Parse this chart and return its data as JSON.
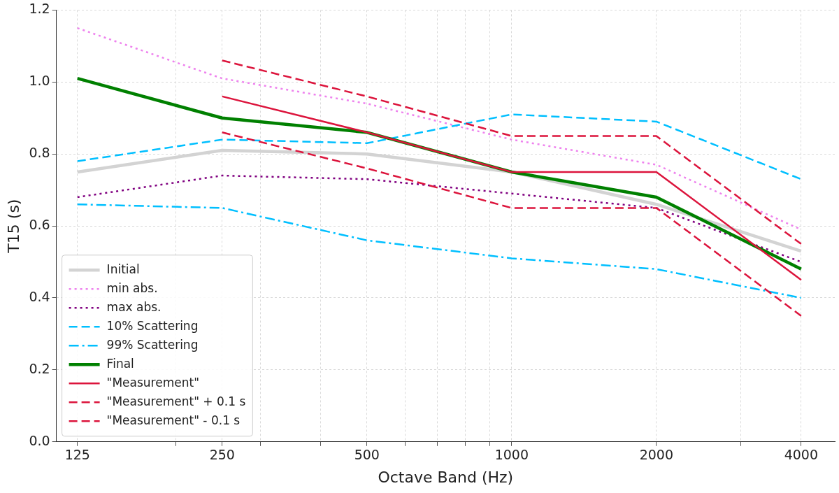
{
  "chart_data": {
    "type": "line",
    "xlabel": "Octave Band (Hz)",
    "ylabel": "T15 (s)",
    "x": [
      125,
      250,
      500,
      1000,
      2000,
      4000
    ],
    "xlim": [
      113,
      4700
    ],
    "ylim": [
      0,
      1.2
    ],
    "log": "x",
    "xticks": [
      125,
      {
        "value": 200,
        "label": null
      },
      250,
      {
        "value": 300,
        "label": null
      },
      {
        "value": 400,
        "label": null
      },
      500,
      {
        "value": 600,
        "label": null
      },
      {
        "value": 700,
        "label": null
      },
      {
        "value": 800,
        "label": null
      },
      {
        "value": 900,
        "label": null
      },
      1000,
      2000,
      {
        "value": 3000,
        "label": null
      },
      4000
    ],
    "yticks": [
      {
        "value": 0,
        "label": "0.0"
      },
      {
        "value": 0.2,
        "label": "0.2"
      },
      {
        "value": 0.4,
        "label": "0.4"
      },
      {
        "value": 0.6,
        "label": "0.6"
      },
      {
        "value": 0.8,
        "label": "0.8"
      },
      {
        "value": 1,
        "label": "1.0"
      },
      {
        "value": 1.2,
        "label": "1.2"
      }
    ],
    "grid": true,
    "legend": "bottom left",
    "marker": "none",
    "series": [
      {
        "name": "Initial",
        "color": "#d3d3d3",
        "line_style": "solid",
        "values": [
          0.75,
          0.81,
          0.8,
          0.75,
          0.66,
          0.53
        ]
      },
      {
        "name": "min abs.",
        "color": "#ee82ee",
        "line_style": "dotted",
        "values": [
          1.15,
          1.01,
          0.94,
          0.84,
          0.77,
          0.59
        ]
      },
      {
        "name": "max abs.",
        "color": "#800080",
        "line_style": "dotted",
        "values": [
          0.68,
          0.74,
          0.73,
          0.69,
          0.65,
          0.5
        ]
      },
      {
        "name": "10% Scattering",
        "color": "#00bfff",
        "line_style": "dashed",
        "values": [
          0.78,
          0.84,
          0.83,
          0.91,
          0.89,
          0.73
        ]
      },
      {
        "name": "99% Scattering",
        "color": "#00bfff",
        "line_style": "dashdot",
        "values": [
          0.66,
          0.65,
          0.56,
          0.51,
          0.48,
          0.4
        ]
      },
      {
        "name": "Final",
        "color": "#008000",
        "line_style": "solid",
        "values": [
          1.01,
          0.9,
          0.86,
          0.75,
          0.68,
          0.48
        ]
      },
      {
        "name": "\"Measurement\"",
        "color": "#dc143c",
        "line_style": "solid",
        "values": [
          null,
          0.96,
          0.86,
          0.75,
          0.75,
          0.45
        ]
      },
      {
        "name": "\"Measurement\" + 0.1 s",
        "color": "#dc143c",
        "line_style": "dashed",
        "values": [
          null,
          1.06,
          0.96,
          0.85,
          0.85,
          0.55
        ]
      },
      {
        "name": "\"Measurement\" - 0.1 s",
        "color": "#dc143c",
        "line_style": "dashed",
        "values": [
          null,
          0.86,
          0.76,
          0.65,
          0.65,
          0.35
        ]
      }
    ]
  }
}
